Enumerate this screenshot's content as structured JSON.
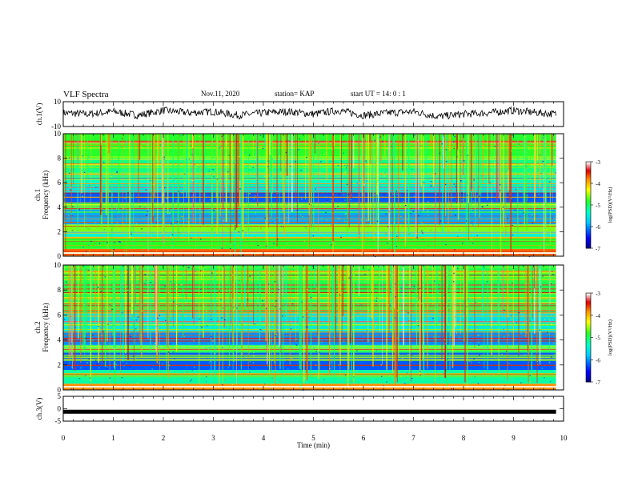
{
  "header": {
    "title": "VLF Spectra",
    "date": "Nov.11, 2020",
    "station": "station= KAP",
    "start": "start  UT =  14: 0  : 1"
  },
  "chart_data": [
    {
      "id": "ch1-waveform",
      "type": "line",
      "ylabel": "ch.1(V)",
      "ylim": [
        -10,
        10
      ],
      "yticks": [
        "10",
        "-10"
      ],
      "xlim": [
        0,
        9.85
      ],
      "description_of_series": "noisy waveform around 0 V",
      "series": [
        {
          "x": [
            0,
            0.5,
            1,
            1.5,
            2,
            2.5,
            3,
            3.5,
            4,
            4.5,
            5,
            5.5,
            6,
            6.5,
            7,
            7.5,
            8,
            8.5,
            9,
            9.5,
            9.85
          ],
          "values": [
            1,
            0,
            2,
            -1,
            3,
            1,
            2,
            -1,
            1,
            2,
            0,
            3,
            -1,
            1,
            2,
            -2,
            0,
            1,
            3,
            1,
            0
          ]
        }
      ]
    },
    {
      "id": "ch1-spectrogram",
      "type": "heatmap",
      "ylabel": "ch.1 Frequency (kHz)",
      "ylim": [
        0,
        10
      ],
      "yticks": [
        "0",
        "2",
        "4",
        "6",
        "8",
        "10"
      ],
      "xlim": [
        0,
        9.85
      ],
      "colorbar": {
        "label": "log(PSD)(V²/Hz)",
        "range": [
          -7,
          -3
        ],
        "ticks": [
          "-3",
          "-4",
          "-5",
          "-6",
          "-7"
        ]
      },
      "bands": [
        {
          "from": 0,
          "to": 0.6,
          "level": -3.6
        },
        {
          "from": 0.6,
          "to": 1.5,
          "level": -4.8
        },
        {
          "from": 1.5,
          "to": 2.0,
          "level": -5.4
        },
        {
          "from": 2.0,
          "to": 2.6,
          "level": -4.6
        },
        {
          "from": 2.6,
          "to": 3.8,
          "level": -5.9
        },
        {
          "from": 3.8,
          "to": 4.4,
          "level": -5.0
        },
        {
          "from": 4.4,
          "to": 5.2,
          "level": -6.2
        },
        {
          "from": 5.2,
          "to": 6.0,
          "level": -5.5
        },
        {
          "from": 6.0,
          "to": 6.8,
          "level": -5.3
        },
        {
          "from": 6.8,
          "to": 8.0,
          "level": -5.1
        },
        {
          "from": 8.0,
          "to": 10,
          "level": -4.8
        }
      ]
    },
    {
      "id": "ch2-spectrogram",
      "type": "heatmap",
      "ylabel": "ch.2 Frequency (kHz)",
      "ylim": [
        0,
        10
      ],
      "yticks": [
        "0",
        "2",
        "4",
        "6",
        "8",
        "10"
      ],
      "xlim": [
        0,
        9.85
      ],
      "colorbar": {
        "label": "log(PSD)(V²/Hz)",
        "range": [
          -7,
          -3
        ],
        "ticks": [
          "-3",
          "-4",
          "-5",
          "-6",
          "-7"
        ]
      },
      "bands": [
        {
          "from": 0,
          "to": 0.5,
          "level": -3.8
        },
        {
          "from": 0.5,
          "to": 1.6,
          "level": -5.2
        },
        {
          "from": 1.6,
          "to": 3.0,
          "level": -6.2
        },
        {
          "from": 3.0,
          "to": 3.6,
          "level": -5.1
        },
        {
          "from": 3.6,
          "to": 4.6,
          "level": -6.0
        },
        {
          "from": 4.6,
          "to": 5.4,
          "level": -5.5
        },
        {
          "from": 5.4,
          "to": 6.2,
          "level": -5.6
        },
        {
          "from": 6.2,
          "to": 7.2,
          "level": -5.0
        },
        {
          "from": 7.2,
          "to": 10,
          "level": -4.9
        }
      ]
    },
    {
      "id": "ch3-waveform",
      "type": "line",
      "ylabel": "ch.3(V)",
      "ylim": [
        -5,
        5
      ],
      "yticks": [
        "5",
        "0",
        "-5"
      ],
      "xlabel": "Time (min)",
      "xlim": [
        0,
        10
      ],
      "xticks": [
        "0",
        "1",
        "2",
        "3",
        "4",
        "5",
        "6",
        "7",
        "8",
        "9",
        "10"
      ],
      "series": [
        {
          "x": [
            0,
            9.85
          ],
          "values": [
            -1.2,
            -1.2
          ]
        }
      ]
    }
  ]
}
